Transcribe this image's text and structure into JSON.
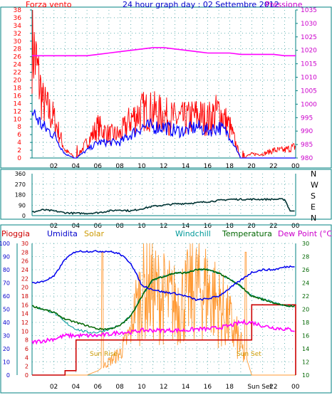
{
  "top_panel": {
    "title": "24 hour graph day : 02 Settembre 2012",
    "left_label": "Forza vento",
    "right_label": "Pressione",
    "left_ticks": [
      "0",
      "2",
      "4",
      "6",
      "8",
      "10",
      "12",
      "14",
      "16",
      "18",
      "20",
      "22",
      "24",
      "26",
      "28",
      "30",
      "32",
      "34",
      "36",
      "38"
    ],
    "right_ticks": [
      "980",
      "985",
      "990",
      "995",
      "1000",
      "1005",
      "1010",
      "1015",
      "1020",
      "1025",
      "1030",
      "1035"
    ],
    "time_ticks": [
      "02",
      "04",
      "06",
      "08",
      "10",
      "12",
      "14",
      "16",
      "18",
      "20",
      "22",
      "00"
    ]
  },
  "middle_panel": {
    "left_ticks": [
      "0",
      "90",
      "180",
      "270",
      "360"
    ],
    "right_labels": [
      "N",
      "W",
      "S",
      "E",
      "N"
    ],
    "time_ticks": [
      "02",
      "04",
      "06",
      "08",
      "10",
      "12",
      "14",
      "16",
      "18",
      "20",
      "22",
      "00"
    ]
  },
  "bottom_panel": {
    "labels": {
      "pioggia": "Pioggia",
      "umidita": "Umidita",
      "solar": "Solar",
      "windchill": "Windchill",
      "temperatura": "Temperatura",
      "dewpoint": "Dew Point (°C)"
    },
    "hum_ticks": [
      "0",
      "10",
      "20",
      "30",
      "40",
      "50",
      "60",
      "70",
      "80",
      "90",
      "100"
    ],
    "rain_ticks": [
      "0",
      "2",
      "4",
      "6",
      "8",
      "10",
      "12",
      "14",
      "16",
      "18",
      "20",
      "22",
      "24",
      "26",
      "28",
      "30"
    ],
    "temp_ticks": [
      "10",
      "12",
      "14",
      "16",
      "18",
      "20",
      "22",
      "24",
      "26",
      "28",
      "30"
    ],
    "time_ticks": [
      "02",
      "04",
      "06",
      "08",
      "10",
      "12",
      "14",
      "16",
      "18",
      "Sun Set",
      "22",
      "00"
    ],
    "annotations": {
      "sunrise": "Sun Rise",
      "sunset": "Sun Set"
    }
  },
  "colors": {
    "gust": "#ff0000",
    "wind": "#0000ff",
    "pressure": "#ff00ff",
    "direction": "#003333",
    "humidity": "#0000ee",
    "temperature": "#006600",
    "windchill": "#009999",
    "dewpoint": "#ff00ff",
    "rain": "#cc0000",
    "solar": "#ff9933",
    "frame": "#008080"
  },
  "chart_data": [
    {
      "type": "line",
      "xlabel": "",
      "ylabel": "Forza vento",
      "y2label": "Pressione",
      "ylim": [
        0,
        38
      ],
      "y2lim": [
        980,
        1035
      ],
      "x_hours": [
        0,
        1,
        2,
        3,
        4,
        5,
        6,
        7,
        8,
        9,
        10,
        11,
        12,
        13,
        14,
        15,
        16,
        17,
        18,
        19,
        20,
        21,
        22,
        23,
        24
      ],
      "series": [
        {
          "name": "Forza vento",
          "axis": "left",
          "values": [
            30,
            14,
            10,
            2,
            0,
            4,
            8,
            6,
            6,
            10,
            12,
            12,
            11,
            10,
            10,
            11,
            10,
            12,
            8,
            0,
            1,
            1,
            2,
            2,
            3
          ]
        },
        {
          "name": "",
          "axis": "left",
          "values": [
            12,
            8,
            6,
            1,
            0,
            2,
            4,
            4,
            4,
            6,
            8,
            8,
            8,
            7,
            7,
            8,
            7,
            8,
            6,
            0,
            0,
            0,
            0,
            0,
            0
          ]
        },
        {
          "name": "Pressione",
          "axis": "right",
          "values": [
            1018,
            1018,
            1018,
            1018,
            1018,
            1018,
            1018.5,
            1019,
            1019.5,
            1020,
            1020.5,
            1021,
            1021,
            1020.5,
            1020,
            1019.5,
            1019,
            1019,
            1019,
            1018.5,
            1018.5,
            1018.5,
            1018.5,
            1018,
            1018
          ]
        }
      ]
    },
    {
      "type": "line",
      "ylabel": "",
      "ylim": [
        0,
        360
      ],
      "x_hours": [
        0,
        1,
        2,
        3,
        4,
        5,
        6,
        7,
        8,
        9,
        10,
        11,
        12,
        13,
        14,
        15,
        16,
        17,
        18,
        19,
        20,
        21,
        22,
        23,
        23.5,
        24
      ],
      "series": [
        {
          "name": "",
          "values": [
            30,
            50,
            40,
            25,
            20,
            20,
            25,
            40,
            50,
            40,
            60,
            80,
            90,
            100,
            105,
            110,
            120,
            130,
            140,
            140,
            140,
            140,
            140,
            140,
            40,
            40
          ]
        }
      ]
    },
    {
      "type": "line",
      "x_hours": [
        0,
        1,
        2,
        3,
        4,
        5,
        6,
        7,
        8,
        9,
        10,
        11,
        12,
        13,
        14,
        15,
        16,
        17,
        18,
        19,
        20,
        21,
        22,
        23,
        24
      ],
      "ylim_temperature": [
        10,
        30
      ],
      "ylim_humidity": [
        0,
        100
      ],
      "ylim_rain": [
        0,
        30
      ],
      "series": [
        {
          "name": "Umidita",
          "axis": "humidity",
          "values": [
            70,
            71,
            75,
            88,
            94,
            94,
            94,
            94,
            92,
            85,
            68,
            65,
            63,
            62,
            60,
            57,
            58,
            60,
            66,
            72,
            78,
            80,
            80,
            82,
            83
          ]
        },
        {
          "name": "Temperatura",
          "axis": "temperature",
          "values": [
            20.5,
            20,
            19.5,
            18.5,
            18,
            17.5,
            17,
            17,
            17.5,
            19,
            22,
            24.5,
            25,
            25.5,
            25.5,
            26,
            26,
            25.5,
            24.5,
            23.5,
            22,
            21.5,
            21,
            20.5,
            20.5
          ]
        },
        {
          "name": "Windchill",
          "axis": "temperature",
          "values": [
            20.5,
            20,
            19.5,
            18,
            17,
            16.5,
            16.5,
            17,
            17.5,
            19,
            22,
            24.5,
            25,
            25.5,
            25.5,
            26,
            26,
            25.5,
            24.5,
            23.5,
            22,
            21.5,
            21,
            20.5,
            20.5
          ]
        },
        {
          "name": "Dew Point (°C)",
          "axis": "temperature",
          "values": [
            15,
            15.2,
            15.5,
            16,
            16,
            16,
            16,
            16.2,
            16.5,
            16.5,
            16.8,
            16.8,
            16.8,
            16.8,
            16.8,
            17,
            17,
            17.2,
            17.5,
            18,
            18,
            17.5,
            17.2,
            17,
            16.8
          ]
        },
        {
          "name": "Pioggia",
          "axis": "rain",
          "values": [
            0,
            0,
            0,
            1,
            8,
            8,
            8,
            8,
            8,
            8,
            8,
            8,
            8,
            8,
            8,
            8,
            8,
            8,
            8,
            8,
            16,
            16,
            16,
            16,
            16
          ]
        },
        {
          "name": "Solar",
          "axis": "solar",
          "values": [
            0,
            0,
            0,
            0,
            0,
            0,
            1,
            3,
            5,
            10,
            25,
            24,
            22,
            20,
            22,
            25,
            24,
            20,
            15,
            8,
            0,
            0,
            0,
            0,
            0
          ]
        }
      ]
    }
  ]
}
